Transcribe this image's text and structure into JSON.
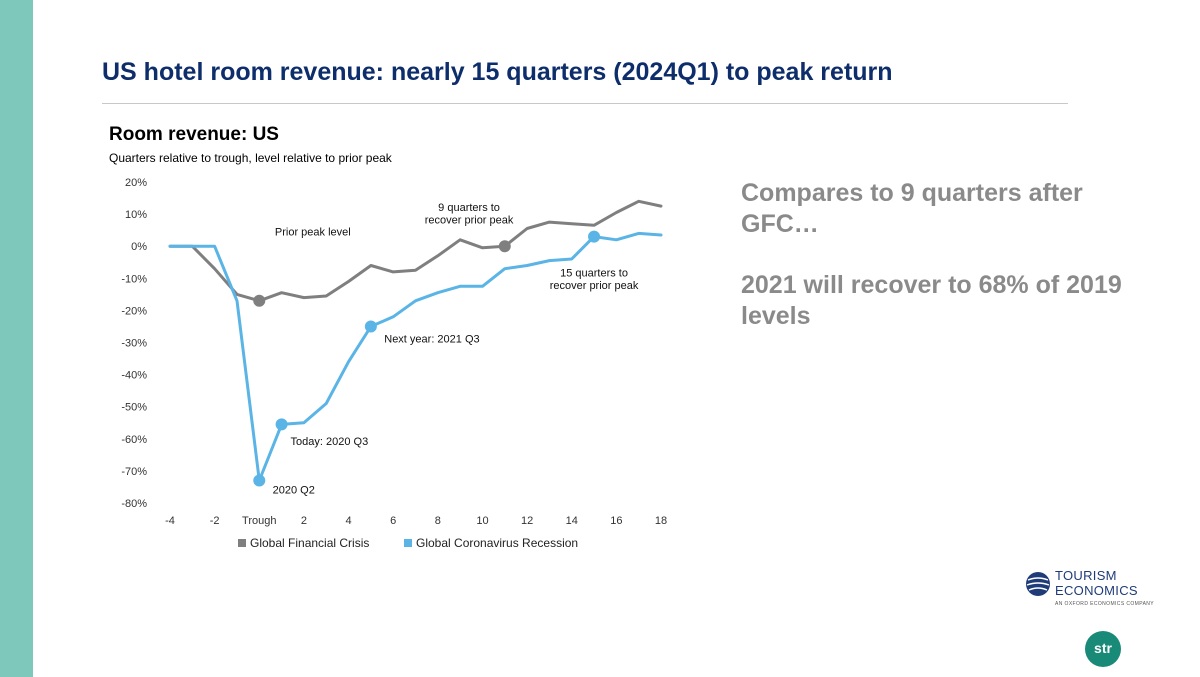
{
  "slide": {
    "title": "US hotel room revenue: nearly 15 quarters (2024Q1) to peak return",
    "side_text_1": "Compares to 9 quarters after GFC…",
    "side_text_2": "2021 will recover to 68% of 2019 levels"
  },
  "logos": {
    "tourism_economics": {
      "line1": "TOURISM",
      "line2": "ECONOMICS",
      "line3": "AN OXFORD ECONOMICS COMPANY"
    },
    "str": {
      "text": "str"
    }
  },
  "colors": {
    "sidebar": "#7ec8bb",
    "title": "#0d2d6b",
    "gfc": "#7f7f7f",
    "covid": "#5ab4e5",
    "side_text": "#8a8a8a"
  },
  "chart_data": {
    "type": "line",
    "title": "Room revenue: US",
    "subtitle": "Quarters relative to trough, level relative to prior peak",
    "x": [
      -4,
      -3,
      -2,
      -1,
      0,
      1,
      2,
      3,
      4,
      5,
      6,
      7,
      8,
      9,
      10,
      11,
      12,
      13,
      14,
      15,
      16,
      17,
      18
    ],
    "x_tick_values": [
      -4,
      -2,
      0,
      2,
      4,
      6,
      8,
      10,
      12,
      14,
      16,
      18
    ],
    "x_tick_labels": [
      "-4",
      "-2",
      "Trough",
      "2",
      "4",
      "6",
      "8",
      "10",
      "12",
      "14",
      "16",
      "18"
    ],
    "ylim": [
      -80,
      20
    ],
    "y_tick_values": [
      20,
      10,
      0,
      -10,
      -20,
      -30,
      -40,
      -50,
      -60,
      -70,
      -80
    ],
    "y_tick_labels": [
      "20%",
      "10%",
      "0%",
      "-10%",
      "-20%",
      "-30%",
      "-40%",
      "-50%",
      "-60%",
      "-70%",
      "-80%"
    ],
    "series": [
      {
        "name": "Global Financial Crisis",
        "color": "#7f7f7f",
        "values": [
          0,
          0,
          -7,
          -15,
          -17,
          -14.5,
          -16,
          -15.5,
          -11,
          -6,
          -8,
          -7.5,
          -3,
          2,
          -0.5,
          0,
          5.5,
          7.5,
          7,
          6.5,
          10.5,
          14,
          12.5
        ]
      },
      {
        "name": "Global Coronavirus Recession",
        "color": "#5ab4e5",
        "values": [
          0,
          0,
          0,
          -17,
          -73,
          -55.5,
          -55,
          -49,
          -36,
          -25,
          -22,
          -17,
          -14.5,
          -12.5,
          -12.5,
          -7,
          -6,
          -4.5,
          -4,
          3,
          2,
          4,
          3.5
        ]
      }
    ],
    "markers": [
      {
        "series": 0,
        "x": 0
      },
      {
        "series": 0,
        "x": 11
      },
      {
        "series": 1,
        "x": 0
      },
      {
        "series": 1,
        "x": 1
      },
      {
        "series": 1,
        "x": 5
      },
      {
        "series": 1,
        "x": 15
      }
    ],
    "annotations": [
      {
        "text": "Prior peak level",
        "x": 0.7,
        "y": 3.3,
        "anchor": "start"
      },
      {
        "text": "9 quarters to",
        "x": 9.4,
        "y": 11,
        "anchor": "middle"
      },
      {
        "text": "recover prior peak",
        "x": 9.4,
        "y": 7,
        "anchor": "middle"
      },
      {
        "text": "15 quarters to",
        "x": 15,
        "y": -9.5,
        "anchor": "middle"
      },
      {
        "text": "recover prior peak",
        "x": 15,
        "y": -13.3,
        "anchor": "middle"
      },
      {
        "text": "Next year: 2021 Q3",
        "x": 5.6,
        "y": -30,
        "anchor": "start"
      },
      {
        "text": "Today: 2020 Q3",
        "x": 1.4,
        "y": -62,
        "anchor": "start"
      },
      {
        "text": "2020 Q2",
        "x": 0.6,
        "y": -77,
        "anchor": "start"
      }
    ],
    "legend_position": "bottom"
  }
}
